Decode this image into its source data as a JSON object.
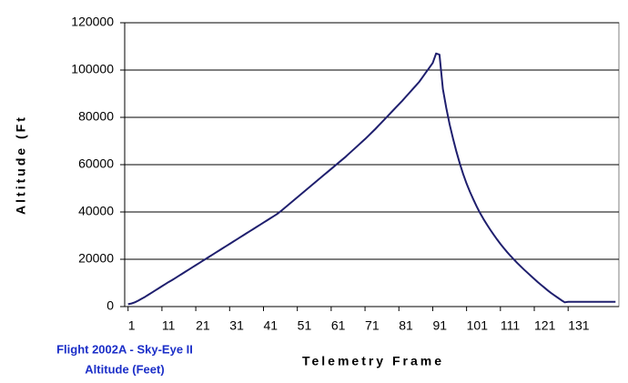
{
  "chart_data": {
    "type": "line",
    "y_label": "Altitude (Ft",
    "x_label": "Telemetry Frame",
    "annotations": [
      "Flight 2002A - Sky-Eye II",
      "Altitude (Feet)"
    ],
    "color": "#1f1f6e",
    "grid": true,
    "x": [
      1,
      2,
      3,
      4,
      5,
      6,
      7,
      8,
      9,
      10,
      11,
      12,
      13,
      14,
      15,
      16,
      17,
      18,
      19,
      20,
      21,
      22,
      23,
      24,
      25,
      26,
      27,
      28,
      29,
      30,
      31,
      32,
      33,
      34,
      35,
      36,
      37,
      38,
      39,
      40,
      41,
      42,
      43,
      44,
      45,
      46,
      47,
      48,
      49,
      50,
      51,
      52,
      53,
      54,
      55,
      56,
      57,
      58,
      59,
      60,
      61,
      62,
      63,
      64,
      65,
      66,
      67,
      68,
      69,
      70,
      71,
      72,
      73,
      74,
      75,
      76,
      77,
      78,
      79,
      80,
      81,
      82,
      83,
      84,
      85,
      86,
      87,
      88,
      89,
      90,
      91,
      92,
      93,
      94,
      95,
      96,
      97,
      98,
      99,
      100,
      101,
      102,
      103,
      104,
      105,
      106,
      107,
      108,
      109,
      110,
      111,
      112,
      113,
      114,
      115,
      116,
      117,
      118,
      119,
      120,
      121,
      122,
      123,
      124,
      125,
      126,
      127,
      128,
      129,
      130,
      131,
      132,
      133,
      134,
      135,
      136,
      137,
      138,
      139,
      140,
      141,
      142,
      143,
      144,
      145
    ],
    "values": [
      1000,
      1300,
      1800,
      2500,
      3300,
      4100,
      5000,
      5900,
      6800,
      7700,
      8600,
      9500,
      10400,
      11200,
      12100,
      13000,
      13900,
      14800,
      15700,
      16600,
      17500,
      18400,
      19300,
      20200,
      21100,
      22000,
      22900,
      23800,
      24700,
      25600,
      26500,
      27400,
      28300,
      29200,
      30100,
      31000,
      31900,
      32800,
      33700,
      34600,
      35500,
      36400,
      37300,
      38200,
      39100,
      40200,
      41400,
      42600,
      43800,
      45000,
      46200,
      47400,
      48600,
      49800,
      51000,
      52200,
      53400,
      54600,
      55800,
      57000,
      58200,
      59400,
      60600,
      61800,
      63000,
      64300,
      65600,
      66900,
      68200,
      69500,
      70800,
      72200,
      73600,
      75000,
      76500,
      78000,
      79500,
      81000,
      82500,
      84000,
      85500,
      87000,
      88600,
      90200,
      91800,
      93400,
      95000,
      97000,
      99000,
      101000,
      103000,
      107000,
      106500,
      92000,
      84000,
      77000,
      71000,
      65500,
      60500,
      56000,
      52000,
      48500,
      45300,
      42300,
      39500,
      37000,
      34700,
      32500,
      30400,
      28400,
      26500,
      24700,
      23000,
      21400,
      19900,
      18400,
      17000,
      15600,
      14300,
      13000,
      11700,
      10400,
      9200,
      8000,
      6800,
      5700,
      4700,
      3700,
      2700,
      1800,
      2000,
      2000,
      2000,
      2000,
      2000,
      2000,
      2000,
      2000,
      2000,
      2000,
      2000,
      2000,
      2000,
      2000,
      2000
    ],
    "xlim": [
      0,
      146
    ],
    "xticks": [
      1,
      11,
      21,
      31,
      41,
      51,
      61,
      71,
      81,
      91,
      101,
      111,
      121,
      131
    ],
    "ylim": [
      0,
      120000
    ],
    "yticks": [
      0,
      20000,
      40000,
      60000,
      80000,
      100000,
      120000
    ]
  }
}
